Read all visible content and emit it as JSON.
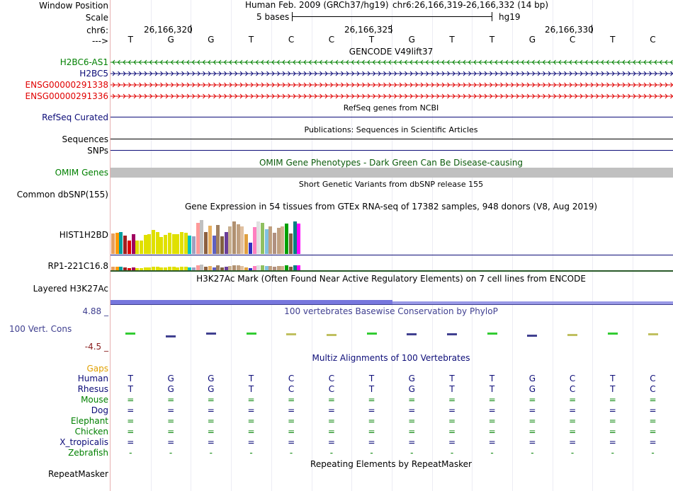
{
  "header": {
    "window_position_label": "Window Position",
    "scale_label": "Scale",
    "chr_label": "chr6:",
    "strand_label": "--->",
    "assembly_text": "Human Feb. 2009 (GRCh37/hg19)",
    "position_text": "chr6:26,166,319-26,166,332 (14 bp)",
    "scale_bases": "5 bases",
    "scale_db": "hg19",
    "ruler_ticks": [
      "26,166,320",
      "26,166,325",
      "26,166,330"
    ]
  },
  "sequence": [
    "T",
    "G",
    "G",
    "T",
    "C",
    "C",
    "T",
    "G",
    "T",
    "T",
    "G",
    "C",
    "T",
    "C"
  ],
  "gencode": {
    "title": "GENCODE V49lift37",
    "genes": [
      {
        "name": "H2BC6-AS1",
        "color": "#008000",
        "direction": "left"
      },
      {
        "name": "H2BC5",
        "color": "#0c0c78",
        "direction": "right"
      },
      {
        "name": "ENSG00000291338",
        "color": "#e00000",
        "direction": "right"
      },
      {
        "name": "ENSG00000291336",
        "color": "#e00000",
        "direction": "right"
      }
    ]
  },
  "refseq": {
    "label": "RefSeq Curated",
    "title": "RefSeq genes from NCBI"
  },
  "publications": {
    "label": "Sequences",
    "title": "Publications: Sequences in Scientific Articles"
  },
  "snps_label": "SNPs",
  "omim": {
    "label": "OMIM Genes",
    "title": "OMIM Gene Phenotypes - Dark Green Can Be Disease-causing"
  },
  "dbsnp": {
    "label": "Common dbSNP(155)",
    "title": "Short Genetic Variants from dbSNP release 155"
  },
  "gtex": {
    "title": "Gene Expression in 54 tissues from GTEx RNA-seq of 17382 samples, 948 donors (V8, Aug 2019)",
    "gene1": "HIST1H2BD",
    "gene2": "RP1-221C16.8",
    "bar_colors": [
      "#e8a060",
      "#ff9900",
      "#00a0a0",
      "#a02020",
      "#e00000",
      "#a00060",
      "#e0e000",
      "#e0e000",
      "#e0e000",
      "#e0e000",
      "#e0e000",
      "#e0e000",
      "#e0e000",
      "#e0e000",
      "#e0e000",
      "#e0e000",
      "#e0e000",
      "#e0e000",
      "#e0e000",
      "#00c0c0",
      "#a0a0c0",
      "#ff9999",
      "#c0c0c0",
      "#8c6040",
      "#e8b060",
      "#6060c0",
      "#a08060",
      "#806040",
      "#6a3d9a",
      "#c8b090",
      "#b09070",
      "#c0a080",
      "#e0c0a0",
      "#e0a040",
      "#3030c0",
      "#ff80c0",
      "#e0e0e0",
      "#90c060",
      "#80c0e0",
      "#c0a080",
      "#b09080",
      "#c0a080",
      "#d0b090",
      "#00a000",
      "#806040",
      "#008080",
      "#ff00ff"
    ],
    "bar_values": [
      0.58,
      0.6,
      0.61,
      0.52,
      0.37,
      0.56,
      0.37,
      0.38,
      0.53,
      0.56,
      0.67,
      0.61,
      0.48,
      0.54,
      0.59,
      0.57,
      0.56,
      0.62,
      0.6,
      0.51,
      0.49,
      0.87,
      0.95,
      0.61,
      0.79,
      0.51,
      0.82,
      0.49,
      0.62,
      0.77,
      0.92,
      0.84,
      0.78,
      0.55,
      0.32,
      0.76,
      0.92,
      0.88,
      0.7,
      0.77,
      0.6,
      0.74,
      0.78,
      0.86,
      0.58,
      0.91,
      0.86
    ]
  },
  "h3k27ac": {
    "label": "Layered H3K27Ac",
    "title": "H3K27Ac Mark (Often Found Near Active Regulatory Elements) on 7 cell lines from ENCODE"
  },
  "conservation": {
    "ymax": "4.88 _",
    "ymin": "-4.5 _",
    "label": "100 Vert. Cons",
    "title": "100 vertebrates Basewise Conservation by PhyloP"
  },
  "multiz": {
    "title": "Multiz Alignments of 100 Vertebrates",
    "gaps_label": "Gaps",
    "species": [
      {
        "name": "Human",
        "color": "#0c0c78",
        "row": [
          "T",
          "G",
          "G",
          "T",
          "C",
          "C",
          "T",
          "G",
          "T",
          "T",
          "G",
          "C",
          "T",
          "C"
        ]
      },
      {
        "name": "Rhesus",
        "color": "#0c0c78",
        "row": [
          "T",
          "G",
          "G",
          "T",
          "C",
          "C",
          "T",
          "G",
          "T",
          "T",
          "G",
          "C",
          "T",
          "C"
        ]
      },
      {
        "name": "Mouse",
        "color": "#008000",
        "row": [
          "=",
          "=",
          "=",
          "=",
          "=",
          "=",
          "=",
          "=",
          "=",
          "=",
          "=",
          "=",
          "=",
          "="
        ]
      },
      {
        "name": "Dog",
        "color": "#0c0c78",
        "row": [
          "=",
          "=",
          "=",
          "=",
          "=",
          "=",
          "=",
          "=",
          "=",
          "=",
          "=",
          "=",
          "=",
          "="
        ]
      },
      {
        "name": "Elephant",
        "color": "#008000",
        "row": [
          "=",
          "=",
          "=",
          "=",
          "=",
          "=",
          "=",
          "=",
          "=",
          "=",
          "=",
          "=",
          "=",
          "="
        ]
      },
      {
        "name": "Chicken",
        "color": "#008000",
        "row": [
          "=",
          "=",
          "=",
          "=",
          "=",
          "=",
          "=",
          "=",
          "=",
          "=",
          "=",
          "=",
          "=",
          "="
        ]
      },
      {
        "name": "X_tropicalis",
        "color": "#0c0c78",
        "row": [
          "=",
          "=",
          "=",
          "=",
          "=",
          "=",
          "=",
          "=",
          "=",
          "=",
          "=",
          "=",
          "=",
          "="
        ]
      },
      {
        "name": "Zebrafish",
        "color": "#008000",
        "row": [
          "-",
          "-",
          "-",
          "-",
          "-",
          "-",
          "-",
          "-",
          "-",
          "-",
          "-",
          "-",
          "-",
          "-"
        ]
      }
    ]
  },
  "repeatmasker": {
    "label": "RepeatMasker",
    "title": "Repeating Elements by RepeatMasker"
  },
  "colors": {
    "navy": "#0c0c78",
    "green": "#008000",
    "red": "#e00000",
    "omim_bar": "#c0c0c0",
    "h3k": "#7777dd",
    "phylop": "#404090"
  }
}
